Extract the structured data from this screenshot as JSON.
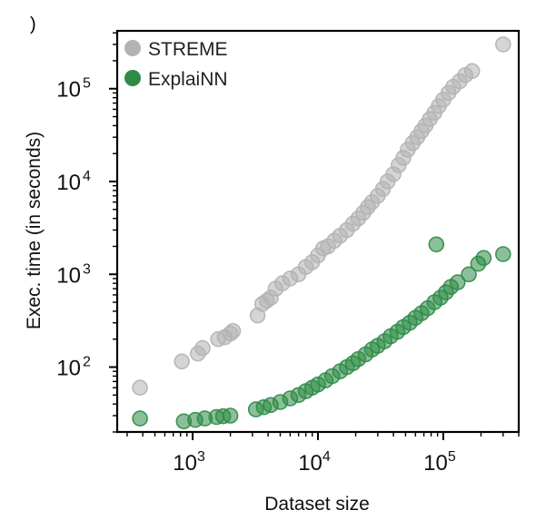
{
  "panel_label": ")",
  "chart_data": {
    "type": "scatter",
    "title": "",
    "xlabel": "Dataset size",
    "ylabel": "Exec. time (in seconds)",
    "xscale": "log",
    "yscale": "log",
    "xlim": [
      250,
      400000
    ],
    "ylim": [
      20,
      420000
    ],
    "x_ticks": [
      {
        "value": 1000,
        "base": "10",
        "exp": "3"
      },
      {
        "value": 10000,
        "base": "10",
        "exp": "4"
      },
      {
        "value": 100000,
        "base": "10",
        "exp": "5"
      }
    ],
    "y_ticks": [
      {
        "value": 100,
        "base": "10",
        "exp": "2"
      },
      {
        "value": 1000,
        "base": "10",
        "exp": "3"
      },
      {
        "value": 10000,
        "base": "10",
        "exp": "4"
      },
      {
        "value": 100000,
        "base": "10",
        "exp": "5"
      }
    ],
    "grid": false,
    "legend_position": "top-left",
    "series": [
      {
        "name": "STREME",
        "color": "#b3b3b3",
        "points": [
          [
            380,
            60
          ],
          [
            820,
            115
          ],
          [
            1100,
            140
          ],
          [
            1200,
            160
          ],
          [
            1600,
            200
          ],
          [
            1800,
            210
          ],
          [
            2000,
            230
          ],
          [
            2100,
            245
          ],
          [
            3300,
            360
          ],
          [
            3600,
            480
          ],
          [
            3900,
            520
          ],
          [
            4200,
            560
          ],
          [
            4600,
            700
          ],
          [
            5200,
            800
          ],
          [
            6000,
            900
          ],
          [
            7000,
            1000
          ],
          [
            8000,
            1200
          ],
          [
            9000,
            1350
          ],
          [
            10000,
            1600
          ],
          [
            11000,
            1900
          ],
          [
            12000,
            2000
          ],
          [
            13500,
            2300
          ],
          [
            15000,
            2600
          ],
          [
            17000,
            3000
          ],
          [
            19000,
            3500
          ],
          [
            21000,
            4000
          ],
          [
            23000,
            4600
          ],
          [
            25000,
            5300
          ],
          [
            27000,
            6000
          ],
          [
            30000,
            7000
          ],
          [
            33000,
            8300
          ],
          [
            36000,
            10000
          ],
          [
            40000,
            12000
          ],
          [
            44000,
            15000
          ],
          [
            48000,
            18000
          ],
          [
            52000,
            22000
          ],
          [
            57000,
            26000
          ],
          [
            62000,
            30000
          ],
          [
            67000,
            35000
          ],
          [
            72000,
            40000
          ],
          [
            78000,
            47000
          ],
          [
            85000,
            55000
          ],
          [
            92000,
            65000
          ],
          [
            100000,
            76000
          ],
          [
            110000,
            90000
          ],
          [
            120000,
            105000
          ],
          [
            135000,
            120000
          ],
          [
            150000,
            140000
          ],
          [
            170000,
            155000
          ],
          [
            300000,
            300000
          ]
        ]
      },
      {
        "name": "ExplaiNN",
        "color": "#2e8b46",
        "points": [
          [
            380,
            28
          ],
          [
            850,
            26
          ],
          [
            1050,
            27
          ],
          [
            1250,
            28
          ],
          [
            1550,
            29
          ],
          [
            1750,
            29.5
          ],
          [
            2000,
            30
          ],
          [
            3200,
            35
          ],
          [
            3700,
            37
          ],
          [
            4200,
            39
          ],
          [
            5000,
            42
          ],
          [
            6000,
            46
          ],
          [
            7000,
            50
          ],
          [
            8000,
            55
          ],
          [
            9000,
            60
          ],
          [
            10000,
            65
          ],
          [
            11500,
            72
          ],
          [
            13000,
            80
          ],
          [
            15000,
            90
          ],
          [
            17000,
            100
          ],
          [
            19000,
            110
          ],
          [
            21000,
            122
          ],
          [
            24000,
            137
          ],
          [
            27000,
            155
          ],
          [
            30000,
            170
          ],
          [
            34000,
            190
          ],
          [
            38000,
            215
          ],
          [
            43000,
            240
          ],
          [
            48000,
            270
          ],
          [
            54000,
            300
          ],
          [
            60000,
            340
          ],
          [
            67000,
            380
          ],
          [
            75000,
            430
          ],
          [
            85000,
            500
          ],
          [
            88000,
            2100
          ],
          [
            95000,
            560
          ],
          [
            105000,
            640
          ],
          [
            115000,
            730
          ],
          [
            130000,
            820
          ],
          [
            160000,
            1000
          ],
          [
            190000,
            1300
          ],
          [
            210000,
            1500
          ],
          [
            300000,
            1650
          ]
        ]
      }
    ]
  }
}
